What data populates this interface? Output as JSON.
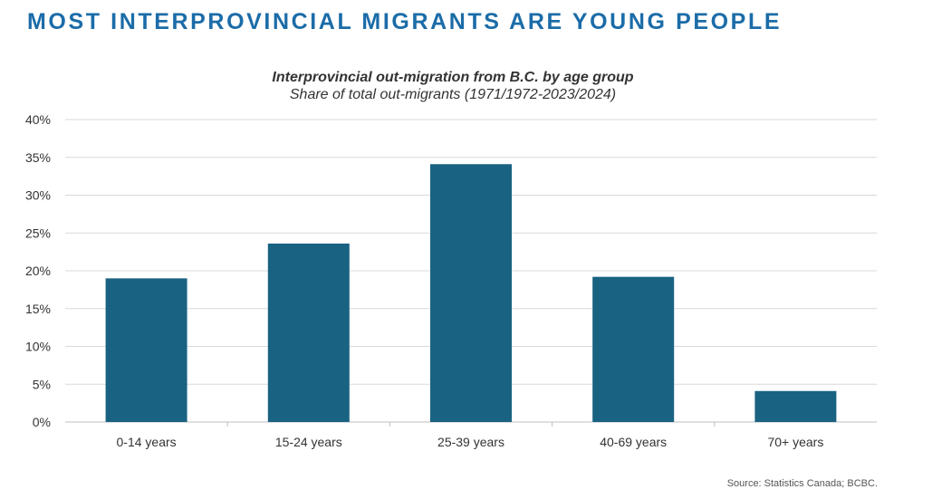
{
  "heading": "MOST INTERPROVINCIAL MIGRANTS ARE YOUNG PEOPLE",
  "source": "Source: Statistics Canada; BCBC.",
  "colors": {
    "bar": "#1a6282",
    "heading": "#1b6ca8",
    "grid": "#d9d9d9"
  },
  "chart_data": {
    "type": "bar",
    "title": "Interprovincial out-migration from B.C. by age group",
    "subtitle": "Share of total out-migrants (1971/1972-2023/2024)",
    "categories": [
      "0-14 years",
      "15-24 years",
      "25-39 years",
      "40-69 years",
      "70+ years"
    ],
    "values": [
      19.0,
      23.6,
      34.1,
      19.2,
      4.1
    ],
    "unit": "%",
    "ylim": [
      0,
      40
    ],
    "yticks": [
      0,
      5,
      10,
      15,
      20,
      25,
      30,
      35,
      40
    ],
    "ytick_labels": [
      "0%",
      "5%",
      "10%",
      "15%",
      "20%",
      "25%",
      "30%",
      "35%",
      "40%"
    ],
    "grid": true,
    "xlabel": "",
    "ylabel": ""
  }
}
